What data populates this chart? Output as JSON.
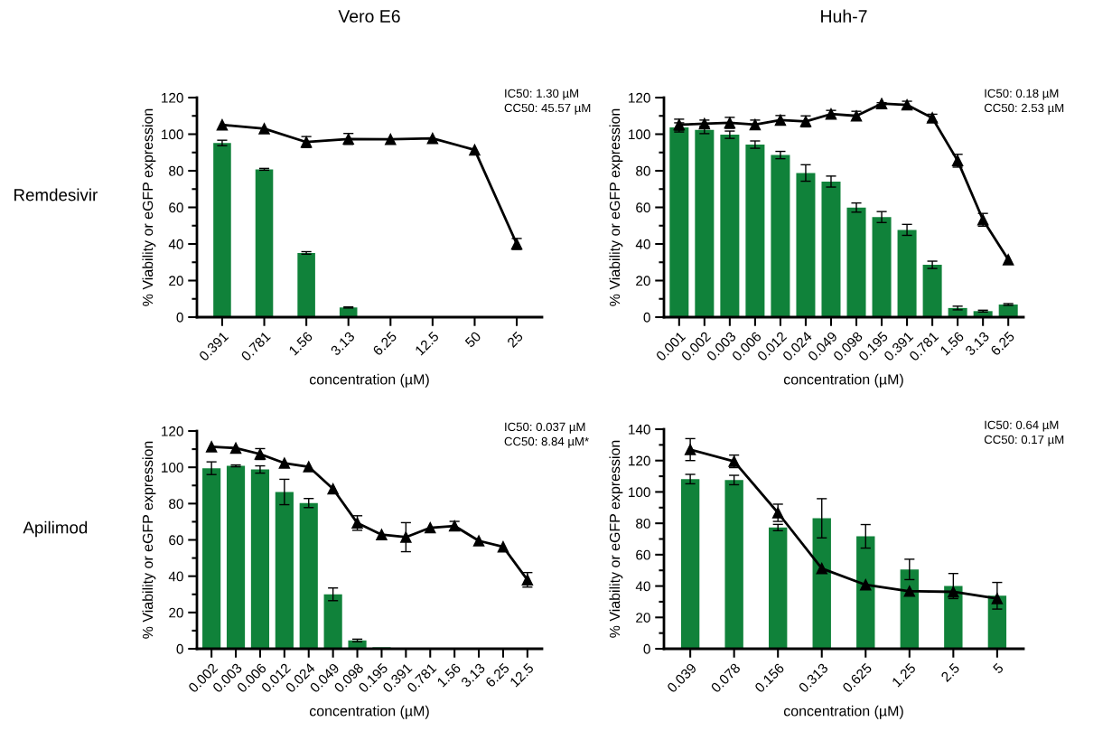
{
  "chart_data": [
    {
      "type": "bar",
      "title": "Vero E6",
      "ylabel": "% Viability or eGFP expression",
      "xlabel": "concentration (µM)",
      "annotations": [
        "Remdesivir",
        "IC50: 1.30 µM\nCC50: 45.57 µM"
      ],
      "categories": [
        "0.391",
        "0.781",
        "1.56",
        "3.13",
        "6.25",
        "12.5",
        "50",
        "25"
      ],
      "ylim": [
        0,
        120
      ],
      "yticks": [
        0,
        20,
        40,
        60,
        80,
        100,
        120
      ],
      "grid": false,
      "series": [
        {
          "color": "#10823a",
          "values": [
            95.2,
            80.8,
            35.1,
            5.3,
            null,
            null,
            null,
            null
          ],
          "errors": [
            1.5,
            0.5,
            0.7,
            0.3,
            null,
            null,
            null,
            null
          ]
        },
        {
          "type": "line",
          "color": "#000000",
          "marker": "triangle",
          "line_style": "solid",
          "values": [
            105.1,
            103,
            95.7,
            97.4,
            97.2,
            97.7,
            91.4,
            40
          ],
          "errors": [
            null,
            null,
            3,
            3,
            null,
            null,
            null,
            3
          ]
        }
      ]
    },
    {
      "type": "bar",
      "title": "Huh-7",
      "ylabel": "% Viability or eGFP expression",
      "xlabel": "concentration (µM)",
      "annotations": [
        "IC50: 0.18 µM\nCC50: 2.53 µM"
      ],
      "categories": [
        "0.001",
        "0.002",
        "0.003",
        "0.006",
        "0.012",
        "0.024",
        "0.049",
        "0.098",
        "0.195",
        "0.391",
        "0.781",
        "1.56",
        "3.13",
        "6.25"
      ],
      "ylim": [
        0,
        120
      ],
      "yticks": [
        0,
        20,
        40,
        60,
        80,
        100,
        120
      ],
      "grid": false,
      "series": [
        {
          "color": "#10823a",
          "values": [
            103.7,
            102.3,
            99.7,
            94.3,
            88.6,
            78.8,
            74.1,
            59.9,
            54.7,
            47.7,
            28.6,
            5,
            3.3,
            6.9
          ],
          "errors": [
            2.5,
            2,
            2,
            2,
            2,
            4.5,
            3,
            2.5,
            3,
            3,
            2,
            1,
            0.5,
            0.5
          ]
        },
        {
          "type": "line",
          "color": "#000000",
          "marker": "triangle",
          "line_style": "solid",
          "values": [
            105.2,
            105.7,
            106.2,
            105.2,
            107.7,
            107,
            111,
            110,
            116.7,
            116,
            108.9,
            85.5,
            53.2,
            31.4
          ],
          "errors": [
            3,
            2,
            3,
            2.5,
            2.5,
            3,
            2,
            2.5,
            0.5,
            2,
            2,
            3.5,
            3.5,
            null
          ]
        }
      ]
    },
    {
      "type": "bar",
      "ylabel": "% Viability or eGFP expression",
      "xlabel": "concentration (µM)",
      "annotations": [
        "Apilimod",
        "IC50: 0.037 µM\nCC50: 8.84 µM*"
      ],
      "categories": [
        "0.002",
        "0.003",
        "0.006",
        "0.012",
        "0.024",
        "0.049",
        "0.098",
        "0.195",
        "0.391",
        "0.781",
        "1.56",
        "3.13",
        "6.25",
        "12.5"
      ],
      "ylim": [
        0,
        120
      ],
      "yticks": [
        0,
        20,
        40,
        60,
        80,
        100,
        120
      ],
      "grid": false,
      "series": [
        {
          "color": "#10823a",
          "values": [
            99.5,
            100.8,
            98.8,
            86.4,
            80.3,
            30,
            4.6,
            0.8,
            0.5,
            null,
            null,
            null,
            null,
            null
          ],
          "errors": [
            3.5,
            0.5,
            2,
            7,
            2.5,
            3.5,
            0.7,
            null,
            null,
            null,
            null,
            null,
            null,
            null
          ]
        },
        {
          "type": "line",
          "color": "#000000",
          "marker": "triangle",
          "line_style": "solid",
          "values": [
            111.3,
            110.6,
            107.3,
            102.3,
            100.3,
            88.1,
            69.3,
            62.9,
            61.5,
            66.7,
            67.7,
            59.5,
            56.2,
            38
          ],
          "errors": [
            null,
            null,
            3,
            null,
            null,
            null,
            4,
            null,
            8,
            null,
            2.5,
            null,
            null,
            4
          ]
        }
      ]
    },
    {
      "type": "bar",
      "ylabel": "% Viability or eGFP expression",
      "xlabel": "concentration (µM)",
      "annotations": [
        "IC50: 0.64 µM\nCC50: 0.17 µM"
      ],
      "categories": [
        "0.039",
        "0.078",
        "0.156",
        "0.313",
        "0.625",
        "1.25",
        "2.5",
        "5"
      ],
      "ylim": [
        0,
        140
      ],
      "yticks": [
        0,
        20,
        40,
        60,
        80,
        100,
        120,
        140
      ],
      "grid": false,
      "series": [
        {
          "color": "#10823a",
          "values": [
            108.2,
            107.6,
            77.3,
            83.2,
            71.7,
            50.6,
            40,
            33.8
          ],
          "errors": [
            3,
            3,
            2,
            12.5,
            7.5,
            6.5,
            8,
            8.5
          ]
        },
        {
          "type": "line",
          "color": "#000000",
          "marker": "triangle",
          "line_style": "solid",
          "values": [
            127,
            119.5,
            86.7,
            51.2,
            40.8,
            36.7,
            36.3,
            32
          ],
          "errors": [
            7,
            4,
            5.5,
            null,
            null,
            null,
            null,
            null
          ]
        }
      ]
    }
  ]
}
